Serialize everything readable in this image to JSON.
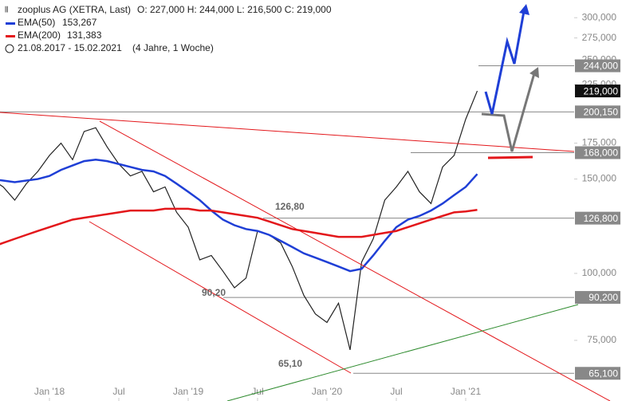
{
  "chart_data": {
    "type": "line",
    "title": "zooplus AG (XETRA, Last)",
    "ohlc": "O: 227,000  H: 244,000  L: 216,500  C: 219,000",
    "period": "21.08.2017 - 15.02.2021",
    "period_note": "(4 Jahre, 1 Woche)",
    "log_scale": true,
    "x": [
      "2017-08",
      "2017-09",
      "2017-10",
      "2017-11",
      "2017-12",
      "2018-01",
      "2018-02",
      "2018-03",
      "2018-04",
      "2018-05",
      "2018-06",
      "2018-07",
      "2018-08",
      "2018-09",
      "2018-10",
      "2018-11",
      "2018-12",
      "2019-01",
      "2019-02",
      "2019-03",
      "2019-04",
      "2019-05",
      "2019-06",
      "2019-07",
      "2019-08",
      "2019-09",
      "2019-10",
      "2019-11",
      "2019-12",
      "2020-01",
      "2020-02",
      "2020-03",
      "2020-04",
      "2020-05",
      "2020-06",
      "2020-07",
      "2020-08",
      "2020-09",
      "2020-10",
      "2020-11",
      "2020-12",
      "2021-01",
      "2021-02"
    ],
    "series": [
      {
        "name": "zooplus AG",
        "color": "#222222",
        "values": [
          150000,
          145000,
          137000,
          147000,
          155000,
          166000,
          175000,
          163000,
          184000,
          187000,
          172000,
          160000,
          152000,
          155000,
          142000,
          145000,
          130000,
          122000,
          106000,
          108000,
          101000,
          94000,
          98000,
          120000,
          118000,
          114000,
          103000,
          91000,
          84000,
          81000,
          88000,
          72000,
          105000,
          116000,
          137000,
          145000,
          155000,
          142000,
          135000,
          158000,
          166000,
          194000,
          219000
        ]
      },
      {
        "name": "EMA(50)",
        "legend_value": "153,267",
        "color": "#1f3fd6",
        "values": [
          150000,
          149000,
          148000,
          149000,
          150000,
          152000,
          156000,
          159000,
          162000,
          163000,
          162000,
          160000,
          158000,
          156000,
          155000,
          152000,
          147000,
          142000,
          137000,
          131000,
          126000,
          123000,
          121000,
          120000,
          118000,
          115000,
          112000,
          109000,
          107000,
          105000,
          103000,
          101000,
          102000,
          108000,
          115000,
          122000,
          126000,
          128000,
          131000,
          135000,
          140000,
          145000,
          153267
        ]
      },
      {
        "name": "EMA(200)",
        "legend_value": "131,383",
        "color": "#e3171b",
        "values": [
          112000,
          114000,
          116000,
          118000,
          120000,
          122000,
          124000,
          126000,
          127000,
          128000,
          129000,
          130000,
          131000,
          131000,
          131000,
          132000,
          132000,
          132000,
          131000,
          131000,
          130000,
          129000,
          128000,
          127000,
          125000,
          123000,
          121000,
          120000,
          119000,
          118000,
          117000,
          117000,
          117000,
          118000,
          119000,
          120000,
          122000,
          124000,
          126000,
          128000,
          130000,
          130500,
          131383
        ]
      }
    ],
    "ylim": [
      57800,
      323700
    ],
    "yticks": [
      {
        "value": 75000,
        "label": "75,000"
      },
      {
        "value": 100000,
        "label": "100,000"
      },
      {
        "value": 150000,
        "label": "150,000"
      },
      {
        "value": 175000,
        "label": "175,000"
      },
      {
        "value": 225000,
        "label": "225,000"
      },
      {
        "value": 250000,
        "label": "250,000"
      },
      {
        "value": 275000,
        "label": "275,000"
      },
      {
        "value": 300000,
        "label": "300,000"
      }
    ],
    "xticks": [
      {
        "value": "2018-01",
        "label": "Jan '18"
      },
      {
        "value": "2018-07",
        "label": "Jul"
      },
      {
        "value": "2019-01",
        "label": "Jan '19"
      },
      {
        "value": "2019-07",
        "label": "Jul"
      },
      {
        "value": "2020-01",
        "label": "Jan '20"
      },
      {
        "value": "2020-07",
        "label": "Jul"
      },
      {
        "value": "2021-01",
        "label": "Jan '21"
      }
    ],
    "levels": [
      {
        "value": 244000,
        "label": "244,000"
      },
      {
        "value": 219000,
        "label": "219,000"
      },
      {
        "value": 200150,
        "label": "200,150"
      },
      {
        "value": 168000,
        "label": "168,000"
      },
      {
        "value": 126800,
        "label": "126,800"
      },
      {
        "value": 90200,
        "label": "90,200"
      },
      {
        "value": 65100,
        "label": "65,100"
      }
    ],
    "annotations": [
      "126,80",
      "90,20",
      "65,10"
    ]
  }
}
